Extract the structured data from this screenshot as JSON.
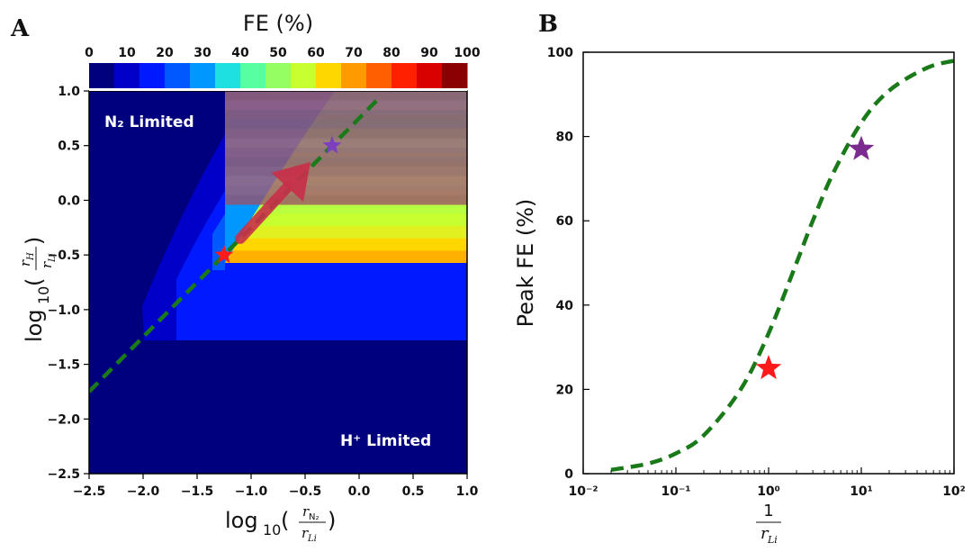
{
  "panels": {
    "a": {
      "letter": "A",
      "colorbar": {
        "title": "FE (%)",
        "ticks": [
          "0",
          "10",
          "20",
          "30",
          "40",
          "50",
          "60",
          "70",
          "80",
          "90",
          "100"
        ],
        "colors": [
          "#00007f",
          "#0000c8",
          "#0019ff",
          "#0059ff",
          "#0098ff",
          "#1fe0e0",
          "#56ffa1",
          "#94ff63",
          "#c8ff2e",
          "#ffd700",
          "#ff9a00",
          "#ff5f00",
          "#ff2000",
          "#d90000",
          "#8b0000"
        ]
      },
      "region_n2": "N₂ Limited",
      "region_h": "H⁺ Limited",
      "x_ticks": [
        "−2.5",
        "−2.0",
        "−1.5",
        "−1.0",
        "−0.5",
        "0.0",
        "0.5",
        "1.0"
      ],
      "y_ticks": [
        "1.0",
        "0.5",
        "0.0",
        "−0.5",
        "−1.0",
        "−1.5",
        "−2.0",
        "−2.5"
      ],
      "xlabel": "log₁₀(r_N₂ / r_Li)",
      "ylabel": "log₁₀(r_H / r_Li)"
    },
    "b": {
      "letter": "B",
      "ylabel": "Peak FE (%)",
      "xlabel_num": "1",
      "xlabel_den": "r_Li",
      "y_ticks": [
        "0",
        "20",
        "40",
        "60",
        "80",
        "100"
      ],
      "x_ticks": [
        "10⁻²",
        "10⁻¹",
        "10⁰",
        "10¹",
        "10²"
      ]
    }
  },
  "chart_data": [
    {
      "type": "heatmap",
      "panel": "A",
      "colorbar_label": "FE (%)",
      "colorbar_range": [
        0,
        100
      ],
      "xlabel": "log10(r_N2/r_Li)",
      "ylabel": "log10(r_H/r_Li)",
      "xlim": [
        -2.5,
        1.0
      ],
      "ylim": [
        -2.5,
        1.0
      ],
      "regions": [
        "N₂ Limited",
        "H⁺ Limited"
      ],
      "dashed_line": {
        "color": "#1a7a1a",
        "x": [
          -2.5,
          0.2
        ],
        "y": [
          -1.75,
          0.95
        ]
      },
      "markers": [
        {
          "shape": "star",
          "color": "#ff1a1a",
          "x": -1.25,
          "y": -0.5
        },
        {
          "shape": "star",
          "color": "#7b3fbf",
          "x": -0.25,
          "y": 0.5
        }
      ],
      "arrow": {
        "color": "#c8304a",
        "from": [
          -1.1,
          -0.35
        ],
        "to": [
          -0.45,
          0.35
        ]
      }
    },
    {
      "type": "line",
      "panel": "B",
      "xscale": "log",
      "xlabel": "1/r_Li",
      "ylabel": "Peak FE (%)",
      "xlim": [
        0.01,
        100
      ],
      "ylim": [
        0,
        100
      ],
      "series": [
        {
          "style": "dashed",
          "color": "#1a7a1a",
          "x": [
            0.02,
            0.05,
            0.1,
            0.2,
            0.5,
            1,
            2,
            3,
            5,
            10,
            20,
            50,
            100
          ],
          "y": [
            0.9,
            2.4,
            4.8,
            9.1,
            20,
            33.3,
            50,
            60,
            71.4,
            83.3,
            90.9,
            96.2,
            98
          ]
        }
      ],
      "markers": [
        {
          "shape": "star",
          "color": "#ff1a1a",
          "x": 1,
          "y": 25
        },
        {
          "shape": "star",
          "color": "#7b2a8f",
          "x": 10,
          "y": 77
        }
      ]
    }
  ]
}
